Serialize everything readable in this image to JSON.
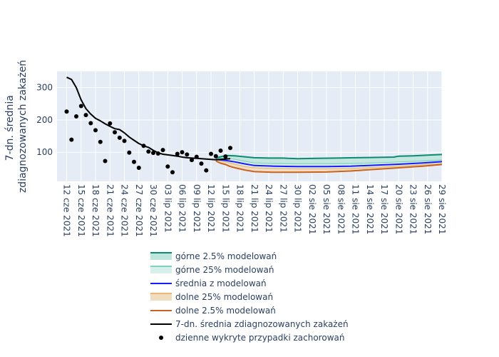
{
  "chart_data": {
    "type": "line",
    "ylabel": [
      "7-dn. średnia",
      "zdiagnozowanych zakażeń"
    ],
    "ylim": [
      10,
      350
    ],
    "yticks": [
      100,
      200,
      300
    ],
    "xlim": [
      "2021-06-10",
      "2021-08-29"
    ],
    "xticks": [
      {
        "date": "2021-06-12",
        "label": "12 cze 2021"
      },
      {
        "date": "2021-06-15",
        "label": "15 cze 2021"
      },
      {
        "date": "2021-06-18",
        "label": "18 cze 2021"
      },
      {
        "date": "2021-06-21",
        "label": "21 cze 2021"
      },
      {
        "date": "2021-06-24",
        "label": "24 cze 2021"
      },
      {
        "date": "2021-06-27",
        "label": "27 cze 2021"
      },
      {
        "date": "2021-06-30",
        "label": "30 cze 2021"
      },
      {
        "date": "2021-07-03",
        "label": "03 lip 2021"
      },
      {
        "date": "2021-07-06",
        "label": "06 lip 2021"
      },
      {
        "date": "2021-07-09",
        "label": "09 lip 2021"
      },
      {
        "date": "2021-07-12",
        "label": "12 lip 2021"
      },
      {
        "date": "2021-07-15",
        "label": "15 lip 2021"
      },
      {
        "date": "2021-07-18",
        "label": "18 lip 2021"
      },
      {
        "date": "2021-07-21",
        "label": "21 lip 2021"
      },
      {
        "date": "2021-07-24",
        "label": "24 lip 2021"
      },
      {
        "date": "2021-07-27",
        "label": "27 lip 2021"
      },
      {
        "date": "2021-07-30",
        "label": "30 lip 2021"
      },
      {
        "date": "2021-08-02",
        "label": "02 sie 2021"
      },
      {
        "date": "2021-08-05",
        "label": "05 sie 2021"
      },
      {
        "date": "2021-08-08",
        "label": "08 sie 2021"
      },
      {
        "date": "2021-08-11",
        "label": "11 sie 2021"
      },
      {
        "date": "2021-08-14",
        "label": "14 sie 2021"
      },
      {
        "date": "2021-08-17",
        "label": "17 sie 2021"
      },
      {
        "date": "2021-08-20",
        "label": "20 sie 2021"
      },
      {
        "date": "2021-08-23",
        "label": "23 sie 2021"
      },
      {
        "date": "2021-08-26",
        "label": "26 sie 2021"
      },
      {
        "date": "2021-08-29",
        "label": "29 sie 2021"
      }
    ],
    "legend_position": "bottom",
    "series": [
      {
        "key": "upper975",
        "name": "górne 2.5% modelowań",
        "kind": "band",
        "color": "#0c8a72",
        "fill": "#bfe6dc",
        "x": [
          "2021-07-13",
          "2021-07-15",
          "2021-07-17",
          "2021-07-19",
          "2021-07-21",
          "2021-07-24",
          "2021-07-27",
          "2021-07-28",
          "2021-07-30",
          "2021-08-03",
          "2021-08-07",
          "2021-08-11",
          "2021-08-15",
          "2021-08-19",
          "2021-08-20",
          "2021-08-23",
          "2021-08-26",
          "2021-08-29"
        ],
        "values": [
          82,
          90,
          89,
          86,
          83,
          82,
          82,
          81,
          80,
          81,
          82,
          83,
          84,
          85,
          88,
          89,
          91,
          93
        ]
      },
      {
        "key": "upper75",
        "name": "górne 25% modelowań",
        "kind": "band",
        "color": "#7fd1c1",
        "fill": "#d8f0ea",
        "x": [
          "2021-07-13",
          "2021-07-15",
          "2021-07-17",
          "2021-07-19",
          "2021-07-21",
          "2021-07-25",
          "2021-07-30",
          "2021-08-05",
          "2021-08-10",
          "2021-08-15",
          "2021-08-20",
          "2021-08-25",
          "2021-08-29"
        ],
        "values": [
          80,
          82,
          78,
          72,
          67,
          65,
          64,
          64,
          65,
          67,
          70,
          73,
          76
        ]
      },
      {
        "key": "mean",
        "name": "średnia z modelowań",
        "kind": "line",
        "color": "#1a1aff",
        "x": [
          "2021-07-13",
          "2021-07-15",
          "2021-07-17",
          "2021-07-19",
          "2021-07-21",
          "2021-07-25",
          "2021-07-30",
          "2021-08-05",
          "2021-08-10",
          "2021-08-15",
          "2021-08-20",
          "2021-08-25",
          "2021-08-29"
        ],
        "values": [
          78,
          75,
          70,
          64,
          59,
          57,
          56,
          56,
          57,
          60,
          63,
          67,
          71
        ]
      },
      {
        "key": "lower25",
        "name": "dolne 25% modelowań",
        "kind": "band",
        "color": "#e8b873",
        "fill": "#f2dcc0",
        "x": [
          "2021-07-13",
          "2021-07-15",
          "2021-07-17",
          "2021-07-19",
          "2021-07-21",
          "2021-07-25",
          "2021-07-30",
          "2021-08-05",
          "2021-08-10",
          "2021-08-15",
          "2021-08-20",
          "2021-08-25",
          "2021-08-29"
        ],
        "values": [
          76,
          70,
          63,
          56,
          52,
          50,
          49,
          49,
          50,
          53,
          57,
          61,
          65
        ]
      },
      {
        "key": "lower025",
        "name": "dolne 2.5% modelowań",
        "kind": "line",
        "color": "#c8641f",
        "x": [
          "2021-07-13",
          "2021-07-14",
          "2021-07-15",
          "2021-07-16",
          "2021-07-17",
          "2021-07-19",
          "2021-07-21",
          "2021-07-25",
          "2021-07-30",
          "2021-08-05",
          "2021-08-10",
          "2021-08-15",
          "2021-08-20",
          "2021-08-25",
          "2021-08-29"
        ],
        "values": [
          73,
          66,
          62,
          56,
          52,
          45,
          40,
          38,
          38,
          39,
          42,
          47,
          52,
          57,
          62
        ]
      },
      {
        "key": "avg7",
        "name": "7-dn. średnia zdiagnozowanych zakażeń",
        "kind": "line",
        "color": "#000000",
        "x": [
          "2021-06-12",
          "2021-06-13",
          "2021-06-14",
          "2021-06-15",
          "2021-06-16",
          "2021-06-17",
          "2021-06-18",
          "2021-06-19",
          "2021-06-20",
          "2021-06-21",
          "2021-06-22",
          "2021-06-23",
          "2021-06-24",
          "2021-06-25",
          "2021-06-26",
          "2021-06-27",
          "2021-06-28",
          "2021-06-29",
          "2021-06-30",
          "2021-07-01",
          "2021-07-02",
          "2021-07-03",
          "2021-07-04",
          "2021-07-05",
          "2021-07-06",
          "2021-07-07",
          "2021-07-08",
          "2021-07-09",
          "2021-07-10",
          "2021-07-11",
          "2021-07-12",
          "2021-07-13",
          "2021-07-14",
          "2021-07-15",
          "2021-07-16"
        ],
        "values": [
          332,
          325,
          300,
          262,
          235,
          218,
          205,
          197,
          188,
          180,
          173,
          170,
          160,
          147,
          137,
          127,
          120,
          115,
          106,
          98,
          94,
          92,
          90,
          88,
          85,
          83,
          82,
          81,
          80,
          79,
          78,
          77,
          78,
          79,
          80
        ]
      },
      {
        "key": "daily",
        "name": "dzienne wykryte przypadki zachorowań",
        "kind": "markers",
        "color": "#000000",
        "x": [
          "2021-06-12",
          "2021-06-13",
          "2021-06-14",
          "2021-06-15",
          "2021-06-16",
          "2021-06-17",
          "2021-06-18",
          "2021-06-19",
          "2021-06-20",
          "2021-06-21",
          "2021-06-22",
          "2021-06-23",
          "2021-06-24",
          "2021-06-25",
          "2021-06-26",
          "2021-06-27",
          "2021-06-28",
          "2021-06-29",
          "2021-06-30",
          "2021-07-01",
          "2021-07-02",
          "2021-07-03",
          "2021-07-04",
          "2021-07-05",
          "2021-07-06",
          "2021-07-07",
          "2021-07-08",
          "2021-07-09",
          "2021-07-10",
          "2021-07-11",
          "2021-07-12",
          "2021-07-13",
          "2021-07-14",
          "2021-07-15",
          "2021-07-16"
        ],
        "values": [
          226,
          139,
          211,
          243,
          215,
          190,
          168,
          132,
          73,
          189,
          162,
          145,
          135,
          99,
          70,
          52,
          120,
          102,
          98,
          96,
          107,
          56,
          38,
          95,
          100,
          93,
          76,
          86,
          65,
          44,
          95,
          88,
          105,
          87,
          113
        ]
      }
    ]
  }
}
